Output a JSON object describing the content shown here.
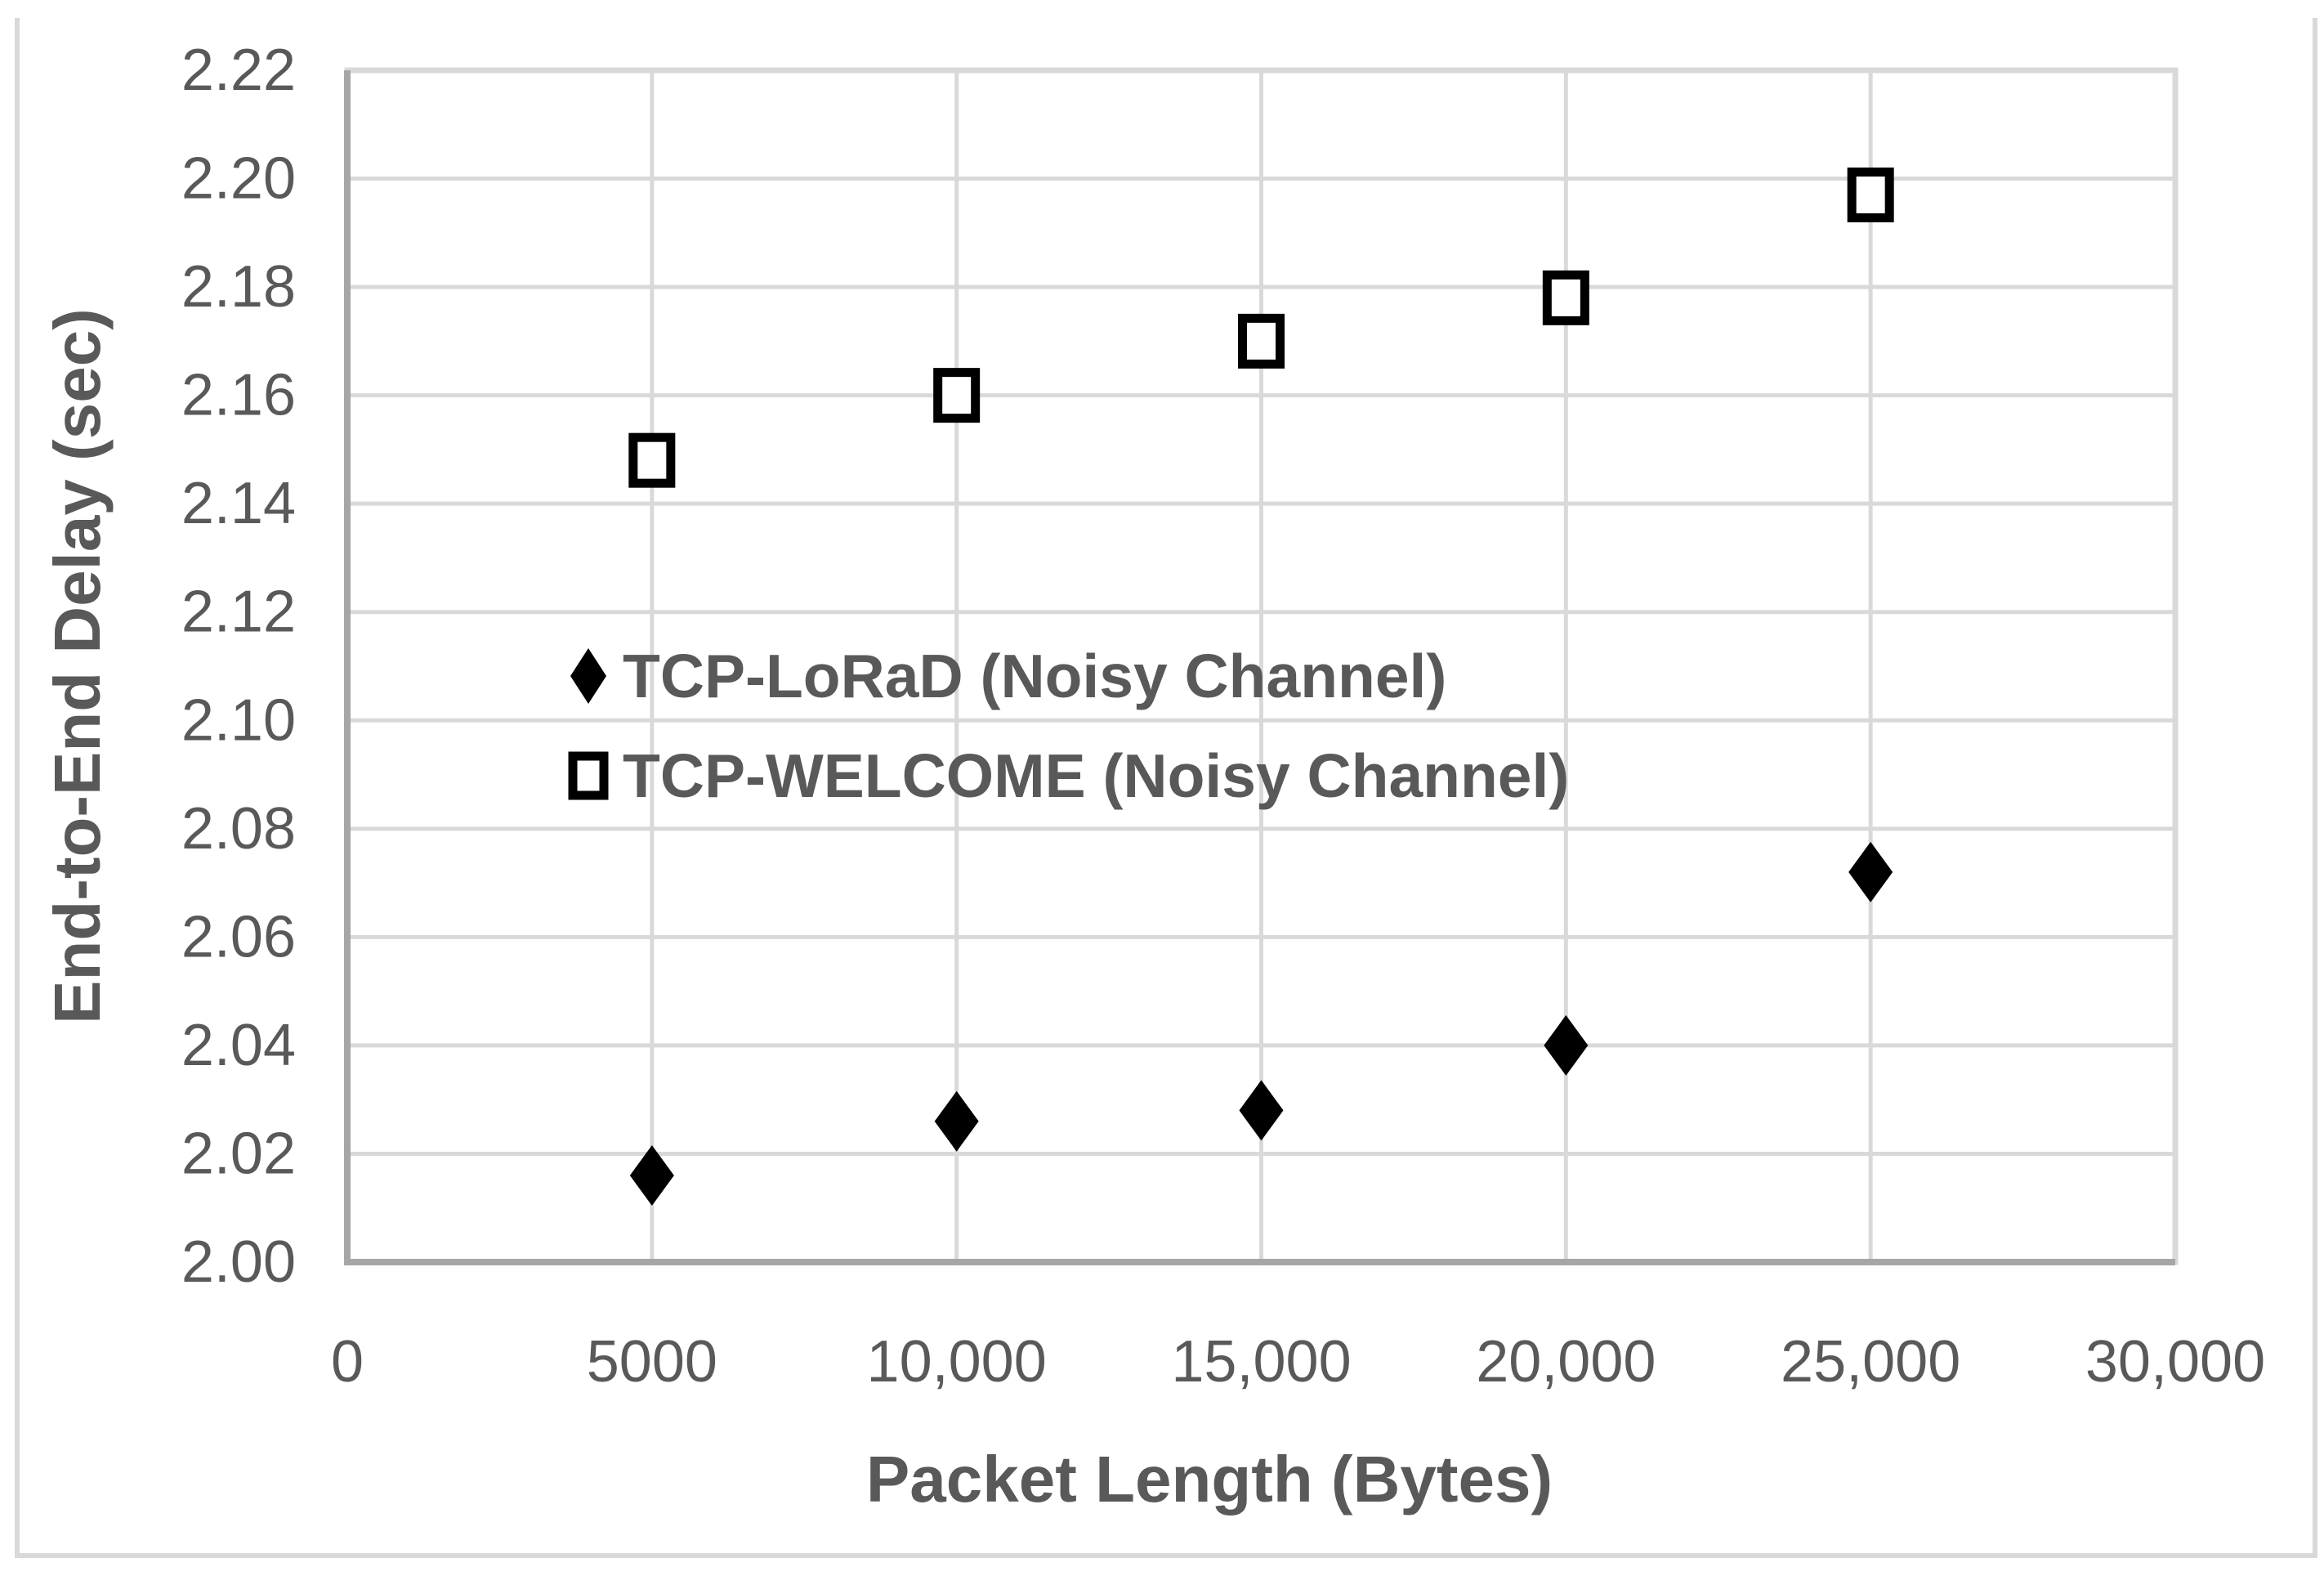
{
  "figure": {
    "background": "#ffffff",
    "outer_border_color": "#d9d9d9"
  },
  "chart_data": {
    "type": "scatter",
    "title": "",
    "xlabel": "Packet Length (Bytes)",
    "ylabel": "End-to-End Delay (sec)",
    "xlim": [
      0,
      30000
    ],
    "ylim": [
      2.0,
      2.22
    ],
    "x_ticks": [
      0,
      5000,
      10000,
      15000,
      20000,
      25000,
      30000
    ],
    "x_tick_labels": [
      "0",
      "5000",
      "10,000",
      "15,000",
      "20,000",
      "25,000",
      "30,000"
    ],
    "y_ticks": [
      2.0,
      2.02,
      2.04,
      2.06,
      2.08,
      2.1,
      2.12,
      2.14,
      2.16,
      2.18,
      2.2,
      2.22
    ],
    "y_tick_labels": [
      "2.00",
      "2.02",
      "2.04",
      "2.06",
      "2.08",
      "2.10",
      "2.12",
      "2.14",
      "2.16",
      "2.18",
      "2.20",
      "2.22"
    ],
    "grid": true,
    "legend_position": "inside-left-middle",
    "series": [
      {
        "name": "TCP-LoRaD (Noisy Channel)",
        "marker": "filled-diamond",
        "color": "#000000",
        "x": [
          5000,
          10000,
          15000,
          20000,
          25000
        ],
        "y": [
          2.016,
          2.026,
          2.028,
          2.04,
          2.072
        ]
      },
      {
        "name": "TCP-WELCOME (Noisy Channel)",
        "marker": "open-square",
        "color": "#000000",
        "x": [
          5000,
          10000,
          15000,
          20000,
          25000
        ],
        "y": [
          2.148,
          2.16,
          2.17,
          2.178,
          2.197
        ]
      }
    ],
    "colors": {
      "text": "#595959",
      "gridline": "#d9d9d9",
      "axis_line": "#a6a6a6",
      "marker": "#000000"
    }
  },
  "legend": {
    "items": [
      {
        "label": "TCP-LoRaD (Noisy Channel)",
        "marker": "filled-diamond"
      },
      {
        "label": "TCP-WELCOME (Noisy Channel)",
        "marker": "open-square"
      }
    ]
  }
}
